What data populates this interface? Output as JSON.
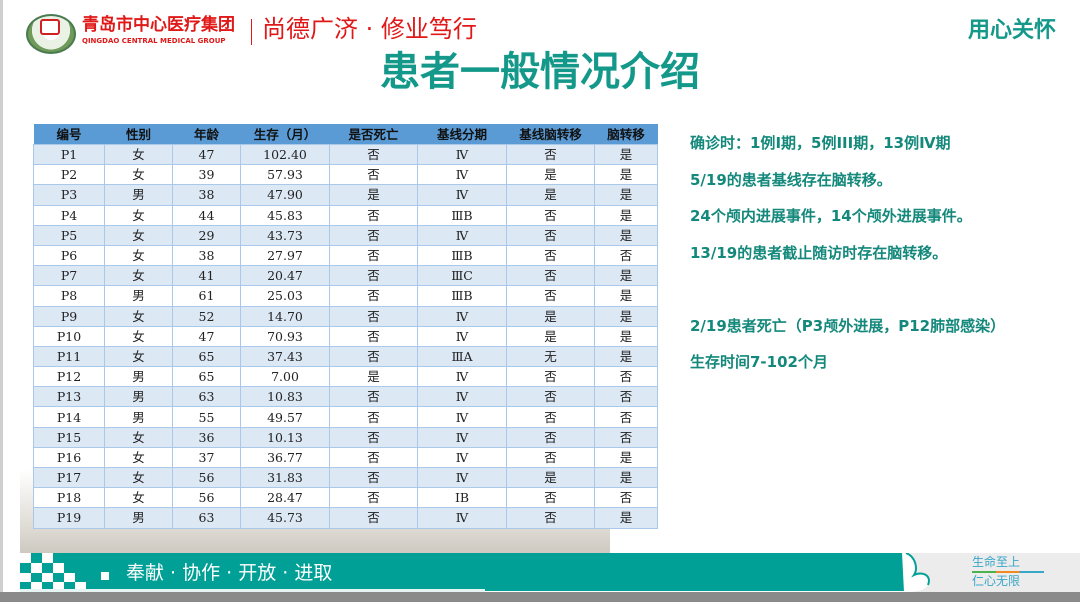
{
  "header": {
    "org_cn": "青岛市中心医疗集团",
    "org_en": "QINGDAO CENTRAL MEDICAL GROUP",
    "motto": "尚德广济 · 修业笃行",
    "care": "用心关怀"
  },
  "title": "患者一般情况介绍",
  "table": {
    "columns": [
      "编号",
      "性别",
      "年龄",
      "生存（月）",
      "是否死亡",
      "基线分期",
      "基线脑转移",
      "脑转移"
    ],
    "rows": [
      [
        "P1",
        "女",
        "47",
        "102.40",
        "否",
        "Ⅳ",
        "否",
        "是"
      ],
      [
        "P2",
        "女",
        "39",
        "57.93",
        "否",
        "Ⅳ",
        "是",
        "是"
      ],
      [
        "P3",
        "男",
        "38",
        "47.90",
        "是",
        "Ⅳ",
        "是",
        "是"
      ],
      [
        "P4",
        "女",
        "44",
        "45.83",
        "否",
        "ⅢB",
        "否",
        "是"
      ],
      [
        "P5",
        "女",
        "29",
        "43.73",
        "否",
        "Ⅳ",
        "否",
        "是"
      ],
      [
        "P6",
        "女",
        "38",
        "27.97",
        "否",
        "ⅢB",
        "否",
        "否"
      ],
      [
        "P7",
        "女",
        "41",
        "20.47",
        "否",
        "ⅢC",
        "否",
        "是"
      ],
      [
        "P8",
        "男",
        "61",
        "25.03",
        "否",
        "ⅢB",
        "否",
        "是"
      ],
      [
        "P9",
        "女",
        "52",
        "14.70",
        "否",
        "Ⅳ",
        "是",
        "是"
      ],
      [
        "P10",
        "女",
        "47",
        "70.93",
        "否",
        "Ⅳ",
        "是",
        "是"
      ],
      [
        "P11",
        "女",
        "65",
        "37.43",
        "否",
        "ⅢA",
        "无",
        "是"
      ],
      [
        "P12",
        "男",
        "65",
        "7.00",
        "是",
        "Ⅳ",
        "否",
        "否"
      ],
      [
        "P13",
        "男",
        "63",
        "10.83",
        "否",
        "Ⅳ",
        "否",
        "否"
      ],
      [
        "P14",
        "男",
        "55",
        "49.57",
        "否",
        "Ⅳ",
        "否",
        "否"
      ],
      [
        "P15",
        "女",
        "36",
        "10.13",
        "否",
        "Ⅳ",
        "否",
        "否"
      ],
      [
        "P16",
        "女",
        "37",
        "36.77",
        "否",
        "Ⅳ",
        "否",
        "是"
      ],
      [
        "P17",
        "女",
        "56",
        "31.83",
        "否",
        "Ⅳ",
        "是",
        "是"
      ],
      [
        "P18",
        "女",
        "56",
        "28.47",
        "否",
        "IB",
        "否",
        "否"
      ],
      [
        "P19",
        "男",
        "63",
        "45.73",
        "否",
        "Ⅳ",
        "否",
        "是"
      ]
    ]
  },
  "notes": [
    "确诊时：1例I期，5例III期，13例Ⅳ期",
    "5/19的患者基线存在脑转移。",
    "24个颅内进展事件，14个颅外进展事件。",
    "13/19的患者截止随访时存在脑转移。",
    "",
    "2/19患者死亡（P3颅外进展，P12肺部感染）",
    "生存时间7-102个月"
  ],
  "footer": {
    "slogan": "奉献 · 协作 · 开放 · 进取",
    "right_top": "生命至上",
    "right_bottom": "仁心无限"
  },
  "colors": {
    "accent": "#13988a",
    "footer": "#00a096",
    "table_header": "#5b9bd5",
    "brand_red": "#e01818"
  }
}
